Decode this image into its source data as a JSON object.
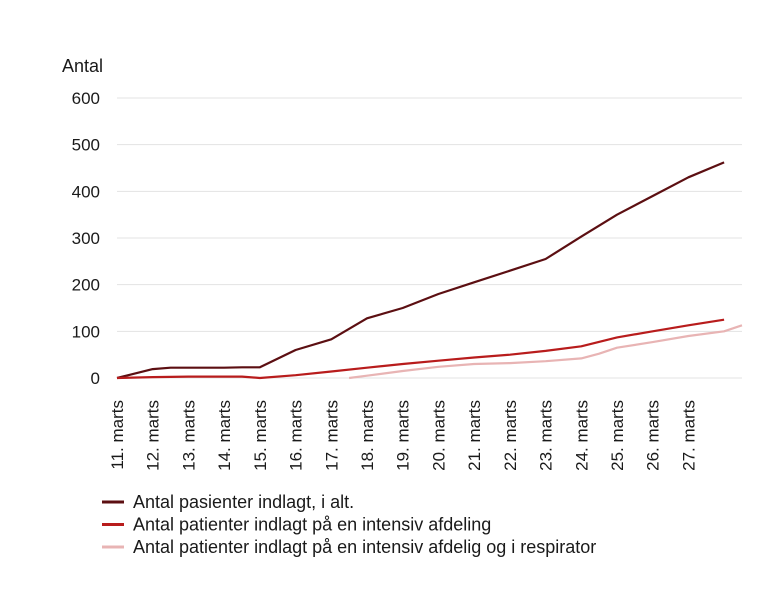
{
  "chart_data": {
    "type": "line",
    "ylabel": "Antal",
    "ylim": [
      0,
      600
    ],
    "yticks": [
      0,
      100,
      200,
      300,
      400,
      500,
      600
    ],
    "grid": true,
    "legend_position": "bottom-left",
    "categories": [
      "11. marts",
      "12. marts",
      "13. marts",
      "14. marts",
      "15. marts",
      "16. marts",
      "17. marts",
      "18. marts",
      "19. marts",
      "20. marts",
      "21. marts",
      "22. marts",
      "23. marts",
      "24. marts",
      "25. marts",
      "26. marts",
      "27. marts"
    ],
    "series": [
      {
        "name": "Antal pasienter indlagt, i alt.",
        "color": "#5c0f12",
        "x": [
          11,
          12,
          12.5,
          13,
          14,
          14.5,
          15,
          16,
          17,
          18,
          19,
          20,
          21,
          22,
          23,
          24,
          25,
          26,
          27,
          28
        ],
        "values": [
          0,
          19,
          22,
          22,
          22,
          23,
          23,
          60,
          83,
          128,
          150,
          180,
          205,
          230,
          255,
          303,
          350,
          390,
          430,
          462
        ]
      },
      {
        "name": "Antal patienter indlagt på en intensiv afdeling",
        "color": "#b81c1c",
        "x": [
          11,
          12,
          13,
          14,
          14.5,
          15,
          16,
          17,
          18,
          19,
          20,
          21,
          22,
          23,
          24,
          25,
          26,
          27,
          28
        ],
        "values": [
          0,
          2,
          3,
          3,
          3,
          0,
          6,
          14,
          22,
          30,
          37,
          44,
          50,
          58,
          68,
          87,
          100,
          113,
          125
        ]
      },
      {
        "name": "Antal patienter indlagt på en intensiv afdelig og i respirator",
        "color": "#e8b4b4",
        "x": [
          17.5,
          18,
          19,
          20,
          21,
          22,
          23,
          24,
          24.5,
          25,
          26,
          27,
          28,
          28.5
        ],
        "values": [
          0,
          5,
          15,
          24,
          30,
          32,
          36,
          42,
          52,
          65,
          77,
          90,
          100,
          113
        ]
      }
    ]
  }
}
